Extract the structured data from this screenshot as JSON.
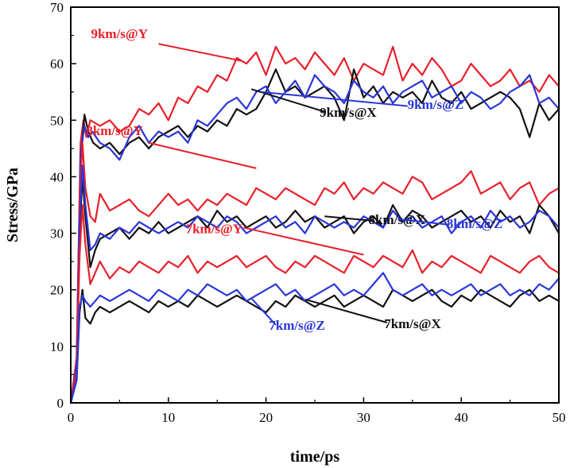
{
  "chart_data": {
    "type": "line",
    "title": "",
    "xlabel": "time/ps",
    "ylabel": "Stress/GPa",
    "xlim": [
      0,
      50
    ],
    "ylim": [
      0,
      70
    ],
    "xticks": [
      0,
      10,
      20,
      30,
      40,
      50
    ],
    "yticks": [
      0,
      10,
      20,
      30,
      40,
      50,
      60,
      70
    ],
    "grid": false,
    "colors": {
      "Y": "#e8202a",
      "X": "#111111",
      "Z": "#2a36d8"
    },
    "series": [
      {
        "name": "9km/s@Y",
        "color": "#e8202a",
        "x": [
          0,
          0.6,
          1.0,
          1.3,
          1.6,
          2,
          3,
          4,
          5,
          6,
          7,
          8,
          9,
          10,
          11,
          12,
          13,
          14,
          15,
          16,
          17,
          18,
          19,
          20,
          21,
          22,
          23,
          24,
          25,
          26,
          27,
          28,
          29,
          30,
          31,
          32,
          33,
          34,
          35,
          36,
          37,
          38,
          39,
          40,
          41,
          42,
          43,
          44,
          45,
          46,
          47,
          48,
          49,
          50
        ],
        "y": [
          0,
          8,
          46,
          50,
          47,
          50,
          49,
          50,
          48,
          49,
          52,
          51,
          53,
          50,
          54,
          53,
          56,
          55,
          58,
          57,
          61,
          60,
          62,
          58,
          63,
          60,
          61,
          59,
          62,
          60,
          58,
          61,
          57,
          60,
          59,
          58,
          63,
          57,
          60,
          58,
          61,
          59,
          56,
          57,
          60,
          58,
          56,
          57,
          59,
          56,
          57,
          55,
          58,
          56
        ]
      },
      {
        "name": "9km/s@X",
        "color": "#111111",
        "x": [
          0,
          0.6,
          1.0,
          1.4,
          1.8,
          2.3,
          3,
          4,
          5,
          6,
          7,
          8,
          9,
          10,
          11,
          12,
          13,
          14,
          15,
          16,
          17,
          18,
          19,
          20,
          21,
          22,
          23,
          24,
          25,
          26,
          27,
          28,
          29,
          30,
          31,
          32,
          33,
          34,
          35,
          36,
          37,
          38,
          39,
          40,
          41,
          42,
          43,
          44,
          45,
          46,
          47,
          48,
          49,
          50
        ],
        "y": [
          0,
          6,
          42,
          51,
          48,
          46,
          45,
          46,
          44,
          46,
          47,
          45,
          47,
          48,
          49,
          47,
          49,
          48,
          50,
          49,
          52,
          51,
          52,
          55,
          59,
          55,
          56,
          54,
          55,
          56,
          54,
          50,
          59,
          54,
          56,
          53,
          55,
          54,
          55,
          53,
          57,
          54,
          53,
          55,
          52,
          53,
          54,
          55,
          54,
          52,
          47,
          53,
          50,
          52
        ]
      },
      {
        "name": "9km/s@Z",
        "color": "#2a36d8",
        "x": [
          0,
          0.6,
          1.0,
          1.4,
          1.8,
          2.2,
          3,
          4,
          5,
          6,
          7,
          8,
          9,
          10,
          11,
          12,
          13,
          14,
          15,
          16,
          17,
          18,
          19,
          20,
          21,
          22,
          23,
          24,
          25,
          26,
          27,
          28,
          29,
          30,
          31,
          32,
          33,
          34,
          35,
          36,
          37,
          38,
          39,
          40,
          41,
          42,
          43,
          44,
          45,
          46,
          47,
          48,
          49,
          50
        ],
        "y": [
          0,
          7,
          44,
          49,
          47,
          48,
          46,
          45,
          43,
          47,
          49,
          46,
          48,
          47,
          48,
          46,
          50,
          49,
          51,
          53,
          54,
          52,
          55,
          56,
          53,
          55,
          57,
          54,
          58,
          56,
          55,
          53,
          57,
          55,
          54,
          56,
          53,
          55,
          56,
          57,
          54,
          55,
          56,
          53,
          55,
          54,
          52,
          53,
          55,
          56,
          58,
          53,
          54,
          52
        ]
      },
      {
        "name": "8km/s@Y",
        "color": "#e8202a",
        "x": [
          0,
          0.6,
          0.9,
          1.2,
          1.5,
          2.0,
          2.5,
          3,
          4,
          5,
          6,
          7,
          8,
          9,
          10,
          11,
          12,
          13,
          14,
          15,
          16,
          17,
          18,
          19,
          20,
          21,
          22,
          23,
          24,
          25,
          26,
          27,
          28,
          29,
          30,
          31,
          32,
          33,
          34,
          35,
          36,
          37,
          38,
          39,
          40,
          41,
          42,
          43,
          44,
          45,
          46,
          47,
          48,
          49,
          50
        ],
        "y": [
          0,
          6,
          36,
          46,
          38,
          33,
          32,
          37,
          34,
          35,
          36,
          34,
          33,
          35,
          37,
          35,
          36,
          34,
          36,
          35,
          37,
          36,
          35,
          38,
          37,
          36,
          38,
          37,
          36,
          35,
          38,
          37,
          39,
          36,
          38,
          37,
          39,
          38,
          37,
          40,
          39,
          36,
          37,
          38,
          39,
          41,
          37,
          38,
          39,
          36,
          38,
          39,
          35,
          37,
          38
        ]
      },
      {
        "name": "8km/s@X",
        "color": "#111111",
        "x": [
          0,
          0.6,
          0.9,
          1.2,
          1.5,
          2.0,
          2.5,
          3,
          4,
          5,
          6,
          7,
          8,
          9,
          10,
          11,
          12,
          13,
          14,
          15,
          16,
          17,
          18,
          19,
          20,
          21,
          22,
          23,
          24,
          25,
          26,
          27,
          28,
          29,
          30,
          31,
          32,
          33,
          34,
          35,
          36,
          37,
          38,
          39,
          40,
          41,
          42,
          43,
          44,
          45,
          46,
          47,
          48,
          49,
          50
        ],
        "y": [
          0,
          5,
          30,
          40,
          33,
          24,
          27,
          29,
          30,
          31,
          29,
          31,
          30,
          32,
          30,
          31,
          32,
          33,
          31,
          34,
          32,
          33,
          31,
          32,
          33,
          31,
          32,
          34,
          32,
          33,
          31,
          32,
          33,
          30,
          32,
          33,
          31,
          35,
          32,
          34,
          33,
          31,
          32,
          33,
          34,
          32,
          33,
          31,
          34,
          32,
          33,
          30,
          35,
          33,
          30
        ]
      },
      {
        "name": "8km/s@Z",
        "color": "#2a36d8",
        "x": [
          0,
          0.6,
          0.9,
          1.2,
          1.5,
          2.0,
          2.5,
          3,
          4,
          5,
          6,
          7,
          8,
          9,
          10,
          11,
          12,
          13,
          14,
          15,
          16,
          17,
          18,
          19,
          20,
          21,
          22,
          23,
          24,
          25,
          26,
          27,
          28,
          29,
          30,
          31,
          32,
          33,
          34,
          35,
          36,
          37,
          38,
          39,
          40,
          41,
          42,
          43,
          44,
          45,
          46,
          47,
          48,
          49,
          50
        ],
        "y": [
          0,
          5,
          32,
          42,
          35,
          27,
          28,
          30,
          29,
          31,
          30,
          32,
          31,
          30,
          31,
          32,
          31,
          33,
          32,
          31,
          33,
          32,
          30,
          31,
          32,
          33,
          31,
          32,
          30,
          33,
          32,
          31,
          32,
          31,
          33,
          32,
          31,
          34,
          32,
          33,
          31,
          32,
          33,
          30,
          32,
          33,
          31,
          34,
          32,
          33,
          31,
          32,
          34,
          33,
          31
        ]
      },
      {
        "name": "7km/s@Y",
        "color": "#e8202a",
        "x": [
          0,
          0.6,
          0.9,
          1.2,
          1.5,
          2.0,
          2.5,
          3,
          4,
          5,
          6,
          7,
          8,
          9,
          10,
          11,
          12,
          13,
          14,
          15,
          16,
          17,
          18,
          19,
          20,
          21,
          22,
          23,
          24,
          25,
          26,
          27,
          28,
          29,
          30,
          31,
          32,
          33,
          34,
          35,
          36,
          37,
          38,
          39,
          40,
          41,
          42,
          43,
          44,
          45,
          46,
          47,
          48,
          49,
          50
        ],
        "y": [
          0,
          5,
          26,
          35,
          28,
          21,
          23,
          25,
          22,
          24,
          23,
          25,
          24,
          23,
          25,
          24,
          26,
          23,
          25,
          24,
          25,
          26,
          24,
          25,
          26,
          24,
          23,
          25,
          24,
          26,
          25,
          24,
          23,
          26,
          25,
          24,
          26,
          25,
          24,
          27,
          23,
          25,
          24,
          26,
          25,
          24,
          23,
          26,
          25,
          24,
          23,
          25,
          26,
          24,
          23
        ]
      },
      {
        "name": "7km/s@X",
        "color": "#111111",
        "x": [
          0,
          0.6,
          0.9,
          1.2,
          1.5,
          2.0,
          2.5,
          3,
          4,
          5,
          6,
          7,
          8,
          9,
          10,
          11,
          12,
          13,
          14,
          15,
          16,
          17,
          18,
          19,
          20,
          21,
          22,
          23,
          24,
          25,
          26,
          27,
          28,
          29,
          30,
          31,
          32,
          33,
          34,
          35,
          36,
          37,
          38,
          39,
          40,
          41,
          42,
          43,
          44,
          45,
          46,
          47,
          48,
          49,
          50
        ],
        "y": [
          0,
          4,
          16,
          20,
          15,
          14,
          16,
          17,
          16,
          17,
          18,
          17,
          16,
          18,
          17,
          18,
          17,
          19,
          18,
          17,
          18,
          19,
          18,
          17,
          16,
          18,
          17,
          19,
          18,
          17,
          18,
          19,
          17,
          18,
          19,
          18,
          17,
          20,
          19,
          18,
          19,
          20,
          18,
          17,
          19,
          18,
          20,
          19,
          18,
          17,
          19,
          20,
          18,
          19,
          18
        ]
      },
      {
        "name": "7km/s@Z",
        "color": "#2a36d8",
        "x": [
          0,
          0.6,
          0.9,
          1.2,
          1.5,
          2.0,
          2.5,
          3,
          4,
          5,
          6,
          7,
          8,
          9,
          10,
          11,
          12,
          13,
          14,
          15,
          16,
          17,
          18,
          19,
          20,
          21,
          22,
          23,
          24,
          25,
          26,
          27,
          28,
          29,
          30,
          31,
          32,
          33,
          34,
          35,
          36,
          37,
          38,
          39,
          40,
          41,
          42,
          43,
          44,
          45,
          46,
          47,
          48,
          49,
          50
        ],
        "y": [
          0,
          4,
          17,
          19,
          18,
          17,
          18,
          19,
          18,
          19,
          20,
          19,
          18,
          20,
          19,
          18,
          20,
          19,
          21,
          20,
          19,
          20,
          18,
          19,
          20,
          21,
          19,
          20,
          18,
          19,
          20,
          21,
          19,
          20,
          19,
          21,
          23,
          20,
          19,
          20,
          21,
          19,
          20,
          19,
          20,
          21,
          19,
          20,
          21,
          19,
          20,
          19,
          21,
          20,
          22
        ]
      }
    ],
    "annotations": [
      {
        "text": "9km/s@Y",
        "series": "9km/s@Y",
        "color": "#e8202a",
        "label_at": [
          7.9,
          64.5
        ],
        "line_from": [
          9.0,
          63.5
        ],
        "line_to": [
          17.5,
          60.5
        ],
        "anchor": "end"
      },
      {
        "text": "9km/s@X",
        "series": "9km/s@X",
        "color": "#111111",
        "label_at": [
          25.5,
          50.6
        ],
        "line_from": [
          18.5,
          55.5
        ],
        "line_to": [
          26.0,
          51.5
        ],
        "anchor": "start"
      },
      {
        "text": "9km/s@Z",
        "series": "9km/s@Z",
        "color": "#2a36d8",
        "label_at": [
          34.5,
          52.0
        ],
        "line_from": [
          19.5,
          55.0
        ],
        "line_to": [
          34.5,
          52.5
        ],
        "anchor": "start"
      },
      {
        "text": "8km/s@Y",
        "series": "8km/s@Y",
        "color": "#e8202a",
        "label_at": [
          7.4,
          47.4
        ],
        "line_from": [
          8.0,
          46.0
        ],
        "line_to": [
          19.0,
          41.5
        ],
        "anchor": "end"
      },
      {
        "text": "8km/s@X",
        "series": "8km/s@X",
        "color": "#111111",
        "label_at": [
          30.5,
          31.6
        ],
        "line_from": [
          26.0,
          33.0
        ],
        "line_to": [
          31.0,
          32.2
        ],
        "anchor": "start"
      },
      {
        "text": "8km/s@Z",
        "series": "8km/s@Z",
        "color": "#2a36d8",
        "label_at": [
          38.5,
          30.9
        ],
        "line_from": [
          33.5,
          32.5
        ],
        "line_to": [
          38.8,
          31.5
        ],
        "anchor": "start"
      },
      {
        "text": "7km/s@Y",
        "series": "7km/s@Y",
        "color": "#e8202a",
        "label_at": [
          17.6,
          30.0
        ],
        "line_from": [
          17.7,
          31.0
        ],
        "line_to": [
          30.0,
          26.2
        ],
        "anchor": "end"
      },
      {
        "text": "7km/s@Z",
        "series": "7km/s@Z",
        "color": "#2a36d8",
        "label_at": [
          20.3,
          12.9
        ],
        "line_from": [
          18.5,
          18.5
        ],
        "line_to": [
          21.0,
          13.8
        ],
        "anchor": "start"
      },
      {
        "text": "7km/s@X",
        "series": "7km/s@X",
        "color": "#111111",
        "label_at": [
          32.1,
          13.2
        ],
        "line_from": [
          24.0,
          18.3
        ],
        "line_to": [
          32.4,
          14.2
        ],
        "anchor": "start"
      }
    ]
  }
}
